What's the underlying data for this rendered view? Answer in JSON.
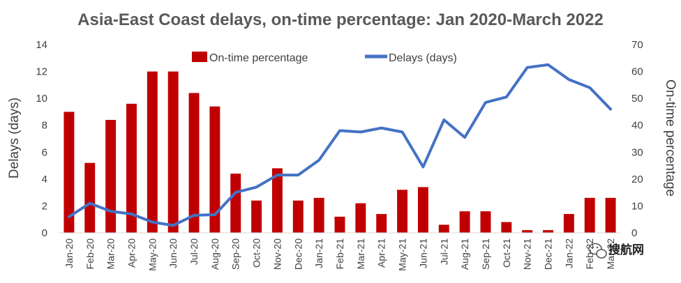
{
  "chart_data": {
    "type": "bar+line",
    "title": "Asia-East Coast delays, on-time percentage: Jan 2020-March 2022",
    "categories": [
      "Jan-20",
      "Feb-20",
      "Mar-20",
      "Apr-20",
      "May-20",
      "Jun-20",
      "Jul-20",
      "Aug-20",
      "Sep-20",
      "Oct-20",
      "Nov-20",
      "Dec-20",
      "Jan-21",
      "Feb-21",
      "Mar-21",
      "Apr-21",
      "May-21",
      "Jun-21",
      "Jul-21",
      "Aug-21",
      "Sep-21",
      "Oct-21",
      "Nov-21",
      "Dec-21",
      "Jan-22",
      "Feb-22",
      "Mar-22"
    ],
    "series": [
      {
        "name": "On-time percentage",
        "type": "bar",
        "axis": "right",
        "color": "#c00000",
        "values": [
          45,
          26,
          42,
          48,
          60,
          60,
          52,
          47,
          22,
          12,
          24,
          12,
          13,
          6,
          11,
          7,
          16,
          17,
          3,
          8,
          8,
          4,
          1,
          1,
          7,
          13,
          13
        ]
      },
      {
        "name": "Delays (days)",
        "type": "line",
        "axis": "left",
        "color": "#4472c4",
        "values": [
          1.2,
          2.2,
          1.6,
          1.4,
          0.8,
          0.55,
          1.3,
          1.35,
          3.0,
          3.4,
          4.3,
          4.3,
          5.4,
          7.6,
          7.5,
          7.8,
          7.5,
          4.9,
          8.4,
          7.1,
          9.7,
          10.1,
          12.3,
          12.5,
          11.4,
          10.8,
          9.2
        ]
      }
    ],
    "y_left": {
      "label": "Delays (days)",
      "min": 0,
      "max": 14,
      "ticks": [
        0,
        2,
        4,
        6,
        8,
        10,
        12,
        14
      ]
    },
    "y_right": {
      "label": "On-time percentage",
      "min": 0,
      "max": 70,
      "ticks": [
        0,
        10,
        20,
        30,
        40,
        50,
        60,
        70
      ]
    },
    "legend": {
      "position": "top",
      "entries": [
        "On-time percentage",
        "Delays (days)"
      ]
    },
    "grid": false
  },
  "watermark": {
    "text": "搜航网",
    "icon": "wechat-icon"
  }
}
